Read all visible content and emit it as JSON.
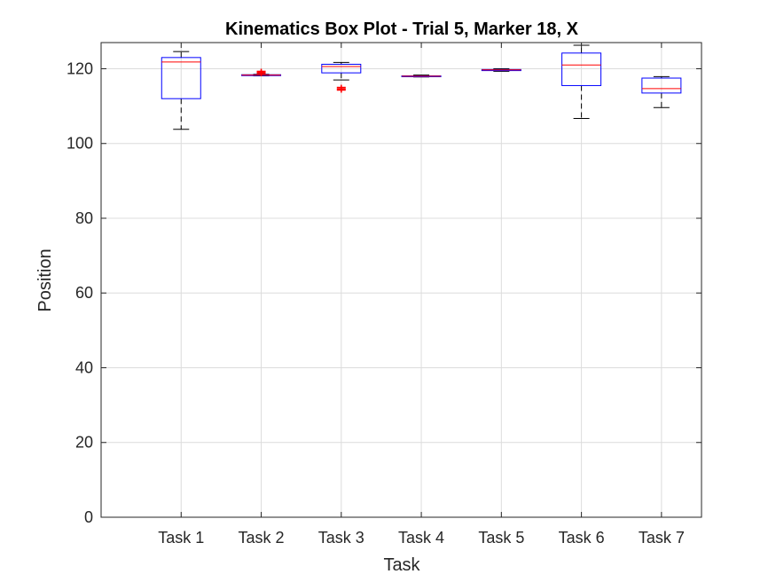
{
  "chart_data": {
    "type": "box",
    "title": "Kinematics Box Plot - Trial 5, Marker 18, X",
    "xlabel": "Task",
    "ylabel": "Position",
    "ylim": [
      0,
      127
    ],
    "yticks": [
      0,
      20,
      40,
      60,
      80,
      100,
      120
    ],
    "categories": [
      "Task 1",
      "Task 2",
      "Task 3",
      "Task 4",
      "Task 5",
      "Task 6",
      "Task 7"
    ],
    "grid": true,
    "colors": {
      "box": "#0000ff",
      "median": "#ff0000",
      "whisker": "#000000",
      "outlier": "#ff0000",
      "grid": "#dcdcdc",
      "axis": "#262626"
    },
    "boxes": [
      {
        "category": "Task 1",
        "whisker_low": 103.8,
        "q1": 112.0,
        "median": 121.8,
        "q3": 123.0,
        "whisker_high": 124.6,
        "outliers": []
      },
      {
        "category": "Task 2",
        "whisker_low": 118.1,
        "q1": 118.2,
        "median": 118.3,
        "q3": 118.4,
        "whisker_high": 118.5,
        "outliers": [
          118.7,
          119.0,
          119.3
        ]
      },
      {
        "category": "Task 3",
        "whisker_low": 117.0,
        "q1": 118.9,
        "median": 120.6,
        "q3": 121.2,
        "whisker_high": 121.7,
        "outliers": [
          114.3,
          114.6,
          115.0
        ]
      },
      {
        "category": "Task 4",
        "whisker_low": 117.8,
        "q1": 117.9,
        "median": 118.0,
        "q3": 118.1,
        "whisker_high": 118.3,
        "outliers": []
      },
      {
        "category": "Task 5",
        "whisker_low": 119.3,
        "q1": 119.5,
        "median": 119.7,
        "q3": 119.8,
        "whisker_high": 120.0,
        "outliers": []
      },
      {
        "category": "Task 6",
        "whisker_low": 106.7,
        "q1": 115.5,
        "median": 121.0,
        "q3": 124.2,
        "whisker_high": 126.3,
        "outliers": []
      },
      {
        "category": "Task 7",
        "whisker_low": 109.6,
        "q1": 113.5,
        "median": 114.7,
        "q3": 117.5,
        "whisker_high": 117.9,
        "outliers": []
      }
    ]
  }
}
